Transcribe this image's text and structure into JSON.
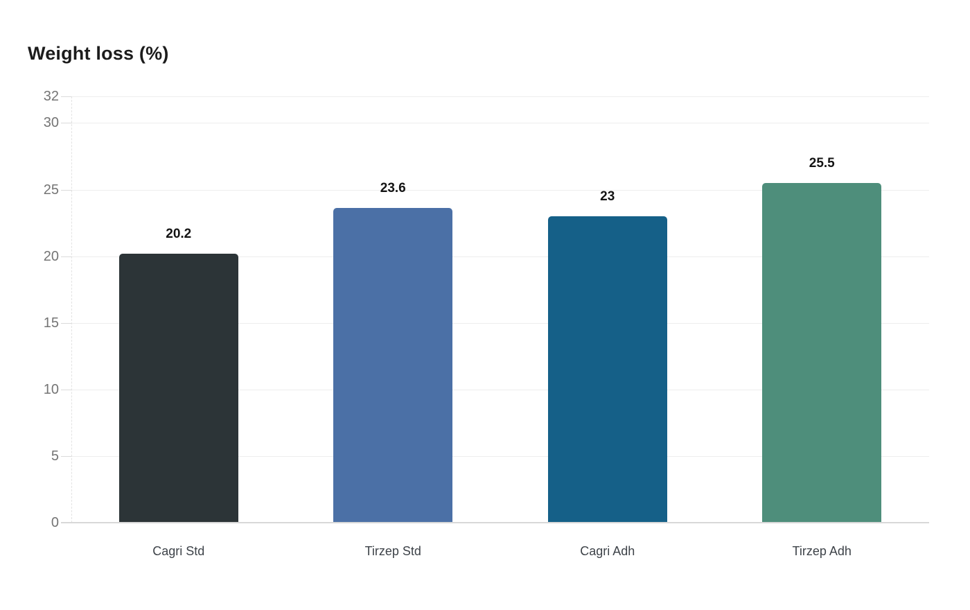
{
  "page": {
    "background_color": "#ffffff"
  },
  "chart_data": {
    "type": "bar",
    "title": "Weight loss (%)",
    "categories": [
      "Cagri Std",
      "Tirzep Std",
      "Cagri Adh",
      "Tirzep Adh"
    ],
    "values": [
      20.2,
      23.6,
      23,
      25.5
    ],
    "value_labels": [
      "20.2",
      "23.6",
      "23",
      "25.5"
    ],
    "bar_colors": [
      "#2c3437",
      "#4b70a6",
      "#156088",
      "#4e8e7b"
    ],
    "xlabel": "",
    "ylabel": "",
    "ylim": [
      0,
      32
    ],
    "yticks": [
      0,
      5,
      10,
      15,
      20,
      25,
      30,
      32
    ],
    "grid": "horizontal-only",
    "legend": "none",
    "colors": {
      "title_text": "#1c1c1c",
      "ytick_text": "#747474",
      "xtick_text": "#3d4248",
      "value_label_text": "#141414",
      "gridline": "#ededed",
      "baseline": "#d8d8d8",
      "axis_dashed": "#e2e2e2",
      "background": "#ffffff"
    }
  }
}
